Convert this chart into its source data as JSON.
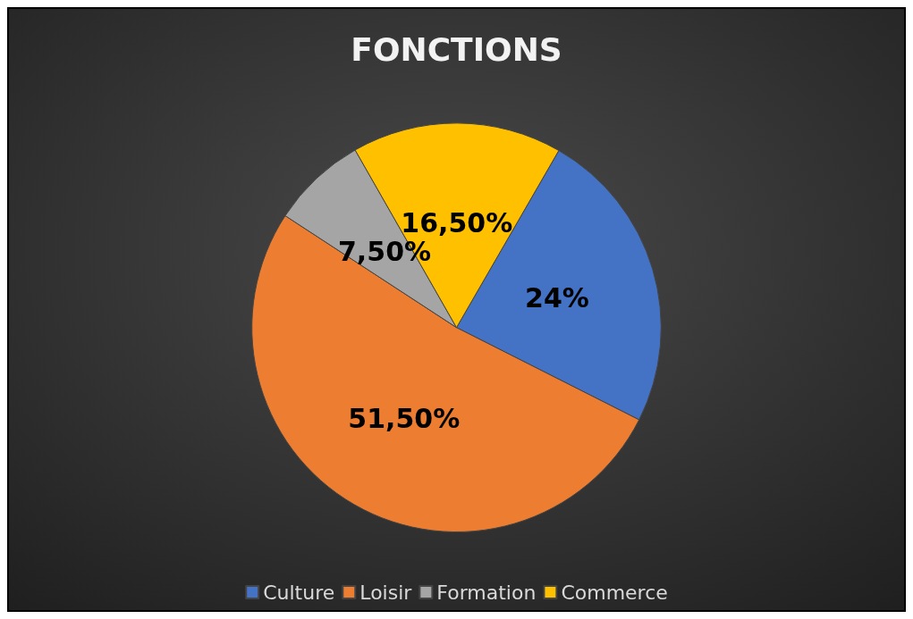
{
  "chart_data": {
    "type": "pie",
    "title": "FONCTIONS",
    "categories": [
      "Culture",
      "Loisir",
      "Formation",
      "Commerce"
    ],
    "values": [
      24,
      51.5,
      7.5,
      16.5
    ],
    "value_labels": [
      "24%",
      "51,50%",
      "7,50%",
      "16,50%"
    ],
    "colors": [
      "#4472c4",
      "#ed7d31",
      "#a5a5a5",
      "#ffc000"
    ],
    "legend": "bottom"
  }
}
